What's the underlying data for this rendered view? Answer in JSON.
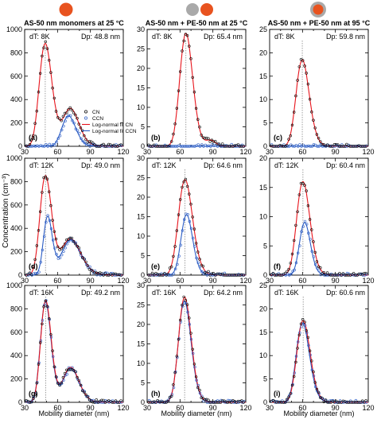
{
  "figure": {
    "columns": [
      {
        "title": "AS-50 nm monomers at 25 °C",
        "icon": "single-orange-particle-icon"
      },
      {
        "title": "AS-50 nm + PE-50 nm at 25 °C",
        "icon": "grey-and-orange-particle-pair-icon"
      },
      {
        "title": "AS-50 nm + PE-50 nm at 95 °C",
        "icon": "orange-particle-grey-shell-icon"
      }
    ],
    "ylabel": "Concentration (cm⁻³)",
    "xlabel": "Mobility diameter (nm)",
    "colors": {
      "cn_fit": "#e8141c",
      "ccn_fit": "#2b5cc4",
      "cn_marker": "#000000",
      "ccn_marker": "#2b5cc4",
      "particle_orange": "#e8531f",
      "particle_grey": "#a9a9a9"
    },
    "legend": {
      "items": [
        "CN",
        "CCN",
        "Log-normal fit CN",
        "Log-normal fit CCN"
      ],
      "placement": "top-right of panel (a)"
    }
  },
  "chart_data": [
    {
      "id": "a",
      "type": "line",
      "row_label": "dT: 8K",
      "dp_label": "Dp: 48.8 nm",
      "dp": 48.8,
      "xlim": [
        30,
        120
      ],
      "xticks": [
        30,
        60,
        90,
        120
      ],
      "ylim": [
        0,
        1000
      ],
      "yticks": [
        0,
        200,
        400,
        600,
        800,
        1000
      ],
      "x_scale": "linear",
      "grid": false,
      "series": [
        {
          "name": "Log-normal fit CN",
          "peaks": [
            {
              "mu": 48.8,
              "a": 880,
              "s": 0.12
            },
            {
              "mu": 72,
              "a": 320,
              "s": 0.1
            }
          ]
        },
        {
          "name": "Log-normal fit CCN",
          "peaks": [
            {
              "mu": 70,
              "a": 260,
              "s": 0.09
            }
          ]
        }
      ]
    },
    {
      "id": "b",
      "type": "line",
      "row_label": "dT: 8K",
      "dp_label": "Dp: 65.4 nm",
      "dp": 65.4,
      "xlim": [
        30,
        120
      ],
      "xticks": [
        30,
        60,
        90,
        120
      ],
      "ylim": [
        0,
        30
      ],
      "yticks": [
        0,
        5,
        10,
        15,
        20,
        25,
        30
      ],
      "x_scale": "linear",
      "grid": false,
      "series": [
        {
          "name": "Log-normal fit CN",
          "peaks": [
            {
              "mu": 65.4,
              "a": 29,
              "s": 0.09
            },
            {
              "mu": 88,
              "a": 1.5,
              "s": 0.05
            }
          ]
        },
        {
          "name": "Log-normal fit CCN",
          "peaks": []
        }
      ]
    },
    {
      "id": "c",
      "type": "line",
      "row_label": "dT: 8K",
      "dp_label": "Dp: 59.8 nm",
      "dp": 59.8,
      "xlim": [
        30,
        120
      ],
      "xticks": [
        30,
        60,
        90,
        120
      ],
      "ylim": [
        0,
        25
      ],
      "yticks": [
        0,
        5,
        10,
        15,
        20,
        25
      ],
      "x_scale": "linear",
      "grid": false,
      "series": [
        {
          "name": "Log-normal fit CN",
          "peaks": [
            {
              "mu": 59.8,
              "a": 18.5,
              "s": 0.1
            }
          ]
        },
        {
          "name": "Log-normal fit CCN",
          "peaks": []
        }
      ]
    },
    {
      "id": "d",
      "type": "line",
      "row_label": "dT: 12K",
      "dp_label": "Dp: 49.0 nm",
      "dp": 49.0,
      "xlim": [
        30,
        120
      ],
      "xticks": [
        30,
        60,
        90,
        120
      ],
      "ylim": [
        0,
        1000
      ],
      "yticks": [
        0,
        200,
        400,
        600,
        800,
        1000
      ],
      "x_scale": "linear",
      "grid": false,
      "series": [
        {
          "name": "Log-normal fit CN",
          "peaks": [
            {
              "mu": 49.0,
              "a": 850,
              "s": 0.11
            },
            {
              "mu": 72,
              "a": 310,
              "s": 0.12
            }
          ]
        },
        {
          "name": "Log-normal fit CCN",
          "peaks": [
            {
              "mu": 51,
              "a": 500,
              "s": 0.08
            },
            {
              "mu": 72,
              "a": 300,
              "s": 0.12
            }
          ]
        }
      ]
    },
    {
      "id": "e",
      "type": "line",
      "row_label": "dT: 12K",
      "dp_label": "Dp: 64.6 nm",
      "dp": 64.6,
      "xlim": [
        30,
        120
      ],
      "xticks": [
        30,
        60,
        90,
        120
      ],
      "ylim": [
        0,
        30
      ],
      "yticks": [
        0,
        5,
        10,
        15,
        20,
        25,
        30
      ],
      "x_scale": "linear",
      "grid": false,
      "series": [
        {
          "name": "Log-normal fit CN",
          "peaks": [
            {
              "mu": 64.6,
              "a": 24.5,
              "s": 0.1
            }
          ]
        },
        {
          "name": "Log-normal fit CCN",
          "peaks": [
            {
              "mu": 66,
              "a": 15.5,
              "s": 0.08
            }
          ]
        }
      ]
    },
    {
      "id": "f",
      "type": "line",
      "row_label": "dT: 12K",
      "dp_label": "Dp: 60.4 nm",
      "dp": 60.4,
      "xlim": [
        30,
        120
      ],
      "xticks": [
        30,
        60,
        90,
        120
      ],
      "ylim": [
        0,
        20
      ],
      "yticks": [
        0,
        5,
        10,
        15,
        20
      ],
      "x_scale": "linear",
      "grid": false,
      "series": [
        {
          "name": "Log-normal fit CN",
          "peaks": [
            {
              "mu": 60.4,
              "a": 16,
              "s": 0.1
            }
          ]
        },
        {
          "name": "Log-normal fit CCN",
          "peaks": [
            {
              "mu": 62,
              "a": 9,
              "s": 0.08
            }
          ]
        }
      ]
    },
    {
      "id": "g",
      "type": "line",
      "row_label": "dT: 16K",
      "dp_label": "Dp: 49.2 nm",
      "dp": 49.2,
      "xlim": [
        30,
        120
      ],
      "xticks": [
        30,
        60,
        90,
        120
      ],
      "ylim": [
        0,
        1000
      ],
      "yticks": [
        0,
        200,
        400,
        600,
        800,
        1000
      ],
      "x_scale": "linear",
      "grid": false,
      "series": [
        {
          "name": "Log-normal fit CN",
          "peaks": [
            {
              "mu": 49.2,
              "a": 870,
              "s": 0.1
            },
            {
              "mu": 72,
              "a": 300,
              "s": 0.1
            }
          ]
        },
        {
          "name": "Log-normal fit CCN",
          "peaks": [
            {
              "mu": 49.0,
              "a": 860,
              "s": 0.1
            },
            {
              "mu": 72,
              "a": 290,
              "s": 0.1
            }
          ]
        }
      ]
    },
    {
      "id": "h",
      "type": "line",
      "row_label": "dT: 16K",
      "dp_label": "Dp: 64.2 nm",
      "dp": 64.2,
      "xlim": [
        30,
        120
      ],
      "xticks": [
        30,
        60,
        90,
        120
      ],
      "ylim": [
        0,
        30
      ],
      "yticks": [
        0,
        5,
        10,
        15,
        20,
        25,
        30
      ],
      "x_scale": "linear",
      "grid": false,
      "series": [
        {
          "name": "Log-normal fit CN",
          "peaks": [
            {
              "mu": 64.2,
              "a": 27,
              "s": 0.09
            }
          ]
        },
        {
          "name": "Log-normal fit CCN",
          "peaks": [
            {
              "mu": 64.0,
              "a": 26,
              "s": 0.09
            }
          ]
        }
      ]
    },
    {
      "id": "i",
      "type": "line",
      "row_label": "dT: 16K",
      "dp_label": "Dp: 60.6 nm",
      "dp": 60.6,
      "xlim": [
        30,
        120
      ],
      "xticks": [
        30,
        60,
        90,
        120
      ],
      "ylim": [
        0,
        25
      ],
      "yticks": [
        0,
        5,
        10,
        15,
        20,
        25
      ],
      "x_scale": "linear",
      "grid": false,
      "series": [
        {
          "name": "Log-normal fit CN",
          "peaks": [
            {
              "mu": 60.6,
              "a": 17.5,
              "s": 0.1
            }
          ]
        },
        {
          "name": "Log-normal fit CCN",
          "peaks": [
            {
              "mu": 60.0,
              "a": 17,
              "s": 0.1
            }
          ]
        }
      ]
    }
  ]
}
